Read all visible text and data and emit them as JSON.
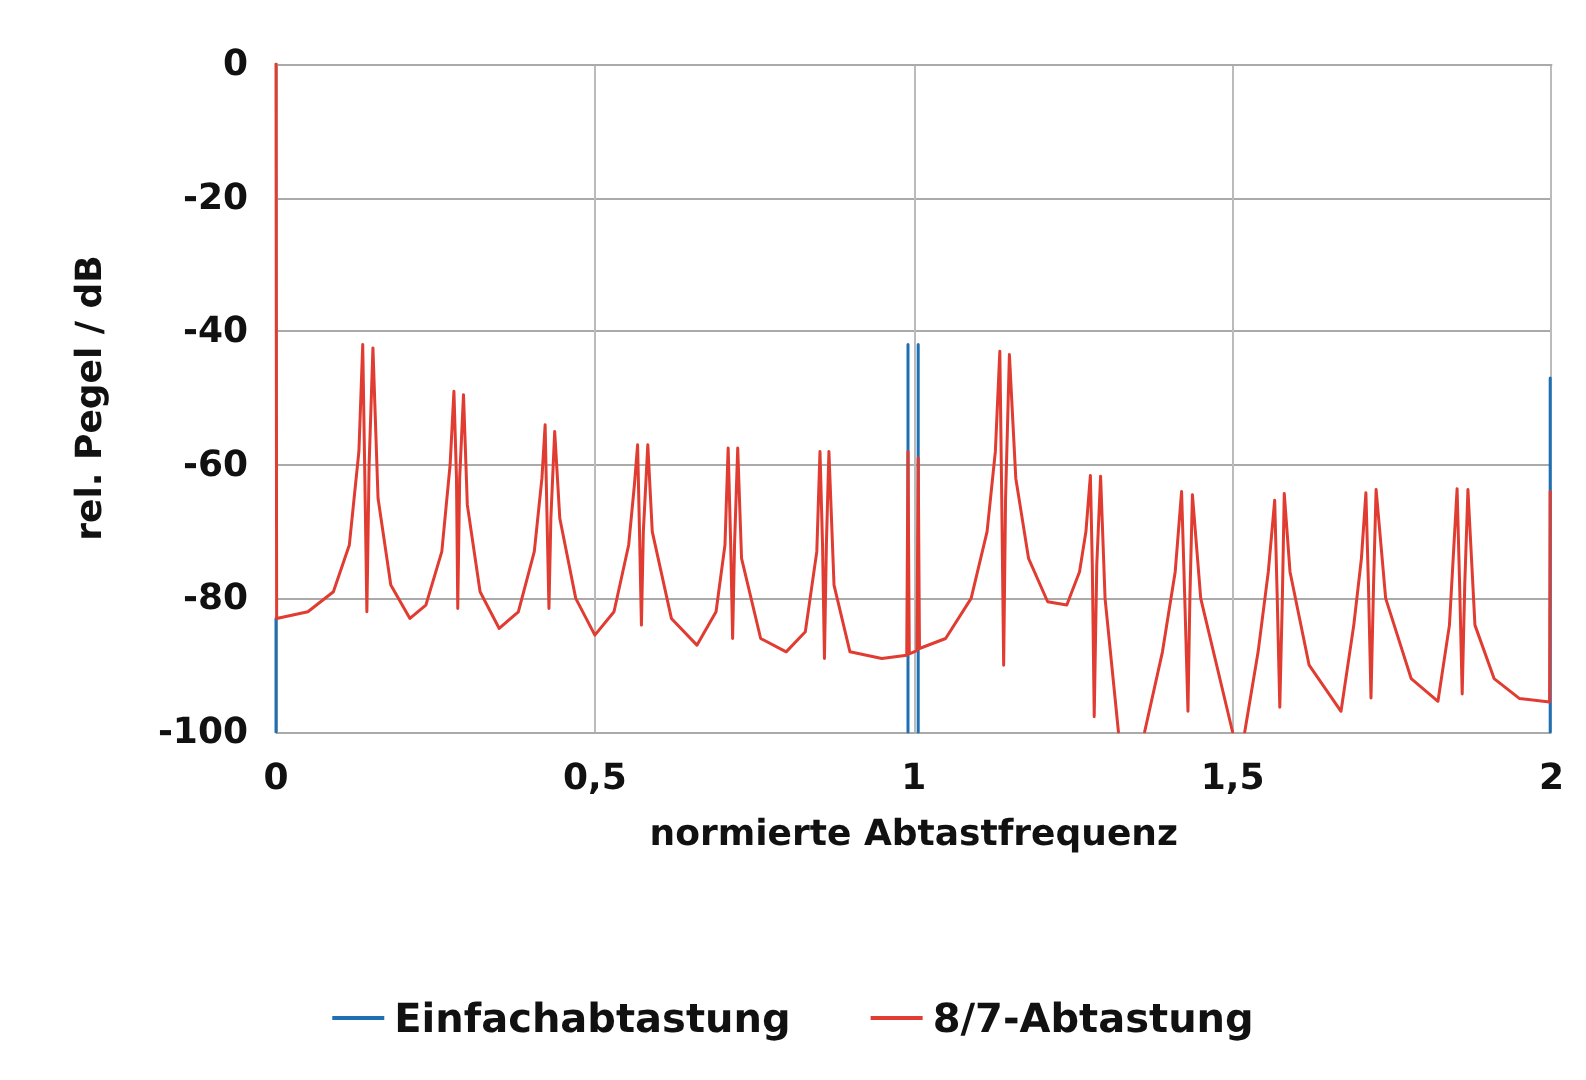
{
  "chart_data": {
    "type": "line",
    "xlabel": "normierte Abtastfrequenz",
    "ylabel": "rel. Pegel / dB",
    "xlim": [
      0,
      2
    ],
    "xticks": [
      0,
      {
        "value": 0.5,
        "label": "0,5"
      },
      1,
      {
        "value": 1.5,
        "label": "1,5"
      },
      2
    ],
    "ylim": [
      -100,
      0
    ],
    "yticks": [
      -100,
      -80,
      -60,
      -40,
      -20,
      0
    ],
    "grid": true,
    "legend": "bottom",
    "marker": "none",
    "line_style": "solid",
    "series": [
      {
        "name": "Einfachabtastung",
        "color": "#1f6fb5",
        "x": [
          0,
          0,
          0.5,
          0.991,
          0.991,
          0.999,
          1.007,
          1.007,
          1.5,
          1.998,
          1.998
        ],
        "values": [
          -83,
          -100,
          null,
          -100,
          -42,
          null,
          -42,
          -100,
          null,
          -100,
          -47
        ]
      },
      {
        "name": "8/7-Abtastung",
        "color": "#e03c31",
        "x": [
          0,
          0.001,
          0.05,
          0.09,
          0.115,
          0.13,
          0.136,
          0.139,
          0.1425,
          0.146,
          0.152,
          0.16,
          0.18,
          0.21,
          0.235,
          0.26,
          0.273,
          0.279,
          0.283,
          0.285,
          0.288,
          0.294,
          0.3,
          0.32,
          0.35,
          0.38,
          0.405,
          0.417,
          0.422,
          0.425,
          0.428,
          0.431,
          0.437,
          0.445,
          0.47,
          0.5,
          0.53,
          0.553,
          0.562,
          0.567,
          0.57,
          0.573,
          0.576,
          0.583,
          0.59,
          0.62,
          0.66,
          0.69,
          0.704,
          0.709,
          0.713,
          0.716,
          0.719,
          0.724,
          0.73,
          0.76,
          0.8,
          0.83,
          0.848,
          0.853,
          0.857,
          0.86,
          0.863,
          0.867,
          0.875,
          0.9,
          0.95,
          0.989,
          0.991,
          0.993,
          1.005,
          1.007,
          1.009,
          1.05,
          1.09,
          1.115,
          1.128,
          1.135,
          1.138,
          1.141,
          1.144,
          1.15,
          1.16,
          1.18,
          1.21,
          1.24,
          1.26,
          1.27,
          1.277,
          1.28,
          1.283,
          1.287,
          1.293,
          1.3,
          1.321,
          1.34,
          1.362,
          1.39,
          1.41,
          1.42,
          1.425,
          1.43,
          1.433,
          1.437,
          1.45,
          1.5,
          1.51,
          1.519,
          1.54,
          1.556,
          1.566,
          1.57,
          1.574,
          1.578,
          1.581,
          1.59,
          1.62,
          1.67,
          1.69,
          1.702,
          1.709,
          1.713,
          1.717,
          1.721,
          1.725,
          1.74,
          1.78,
          1.822,
          1.84,
          1.852,
          1.856,
          1.86,
          1.864,
          1.869,
          1.88,
          1.91,
          1.95,
          1.997,
          1.998
        ],
        "values": [
          0,
          -83,
          -82,
          -79,
          -72,
          -58,
          -42,
          -60,
          -82,
          -60,
          -42.5,
          -65,
          -78,
          -83,
          -81,
          -73,
          -60,
          -49,
          -62,
          -81.5,
          -62,
          -49.5,
          -66,
          -79,
          -84.5,
          -82,
          -73,
          -62,
          -54,
          -68,
          -81.5,
          -68,
          -55,
          -68,
          -80,
          -85.5,
          -82,
          -72,
          -63,
          -57,
          -70,
          -84,
          -70,
          -57,
          -70,
          -83,
          -87,
          -82,
          -72,
          -57.5,
          -72,
          -86,
          -72,
          -57.5,
          -74,
          -86,
          -88,
          -85,
          -73,
          -58,
          -72,
          -89,
          -72,
          -58,
          -78,
          -88,
          -89,
          -88.5,
          -58,
          -88.3,
          -87.8,
          -59,
          -87.5,
          -86,
          -80,
          -70,
          -58,
          -43,
          -65,
          -90,
          -65,
          -43.5,
          -62,
          -74,
          -80.5,
          -81,
          -76,
          -70,
          -61.6,
          -75,
          -97.7,
          -75,
          -61.7,
          -80,
          -100,
          null,
          -100,
          -88,
          -76,
          -64,
          -80,
          -96.9,
          -80,
          -64.5,
          -80,
          -100,
          null,
          -100,
          -88,
          -76,
          -65.3,
          -80,
          -96.3,
          -80,
          -64.3,
          -76,
          -90,
          -96.9,
          -84,
          -74,
          -64.2,
          -78,
          -94.9,
          -78,
          -63.7,
          -80,
          -92,
          -95.4,
          -84,
          -63.6,
          -78,
          -94.3,
          -78,
          -63.7,
          -84,
          -92,
          -95,
          -95.5,
          -64
        ]
      }
    ]
  }
}
